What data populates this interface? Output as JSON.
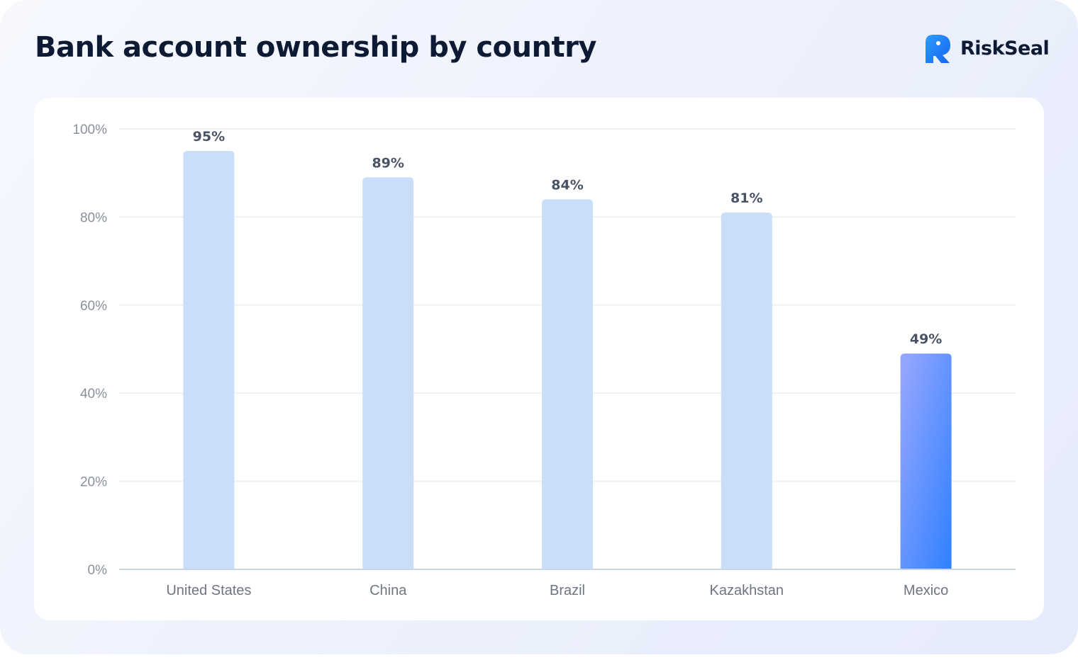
{
  "header": {
    "title": "Bank account ownership by country"
  },
  "brand": {
    "name": "RiskSeal",
    "logo_icon": "riskseal-logo-icon",
    "logo_color": "#1e88ff"
  },
  "colors": {
    "bar_default": "#cadefa",
    "bar_highlight_top": "#9aa8ff",
    "bar_highlight_bottom": "#2f80ff",
    "gridline": "#eef1f6",
    "baseline": "#c9d6ea"
  },
  "chart_data": {
    "type": "bar",
    "title": "Bank account ownership by country",
    "xlabel": "",
    "ylabel": "",
    "categories": [
      "United States",
      "China",
      "Brazil",
      "Kazakhstan",
      "Mexico"
    ],
    "values": [
      95,
      89,
      84,
      81,
      49
    ],
    "value_labels": [
      "95%",
      "89%",
      "84%",
      "81%",
      "49%"
    ],
    "highlighted_category": "Mexico",
    "ylim": [
      0,
      100
    ],
    "yticks": [
      0,
      20,
      40,
      60,
      80,
      100
    ],
    "ytick_labels": [
      "0%",
      "20%",
      "40%",
      "60%",
      "80%",
      "100%"
    ],
    "grid": true,
    "legend": "none"
  }
}
